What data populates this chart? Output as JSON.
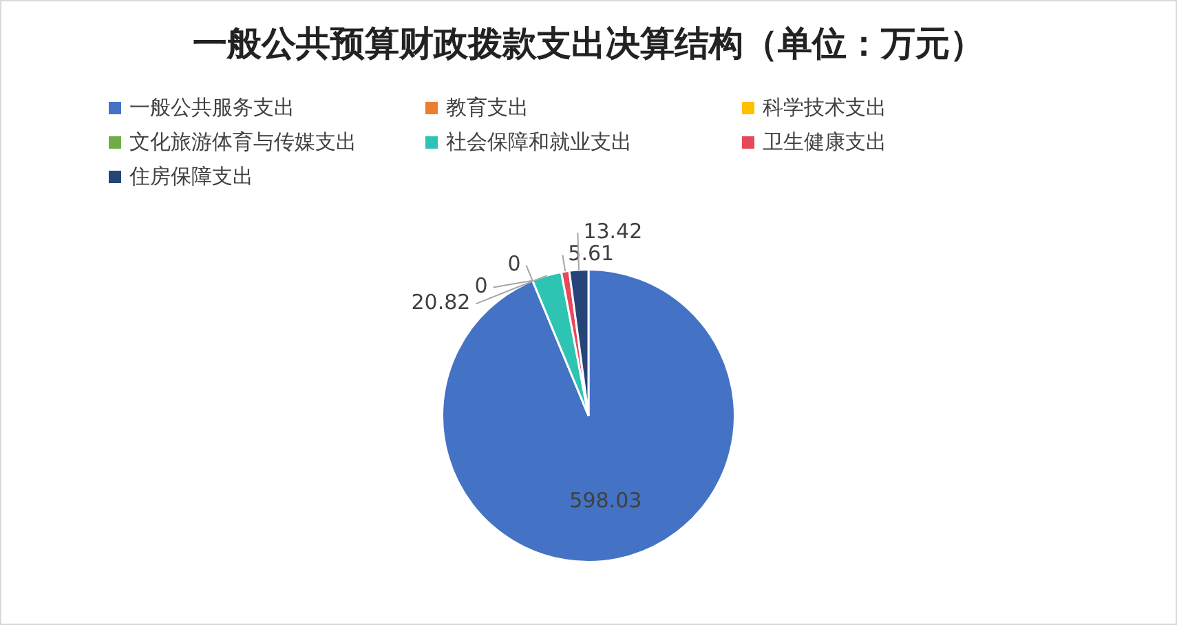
{
  "chart_data": {
    "type": "pie",
    "title": "一般公共预算财政拨款支出决算结构（单位：万元）",
    "categories": [
      "一般公共服务支出",
      "教育支出",
      "科学技术支出",
      "文化旅游体育与传媒支出",
      "社会保障和就业支出",
      "卫生健康支出",
      "住房保障支出"
    ],
    "values": [
      598.03,
      0,
      0,
      0,
      20.82,
      5.61,
      13.42
    ],
    "colors": [
      "#4472c4",
      "#ed7d31",
      "#ffc000",
      "#70ad47",
      "#2ec4b4",
      "#e8485c",
      "#264478"
    ],
    "value_labels": [
      "598.03",
      "0",
      "0",
      null,
      "20.82",
      "5.61",
      "13.42"
    ],
    "legend": "top"
  }
}
